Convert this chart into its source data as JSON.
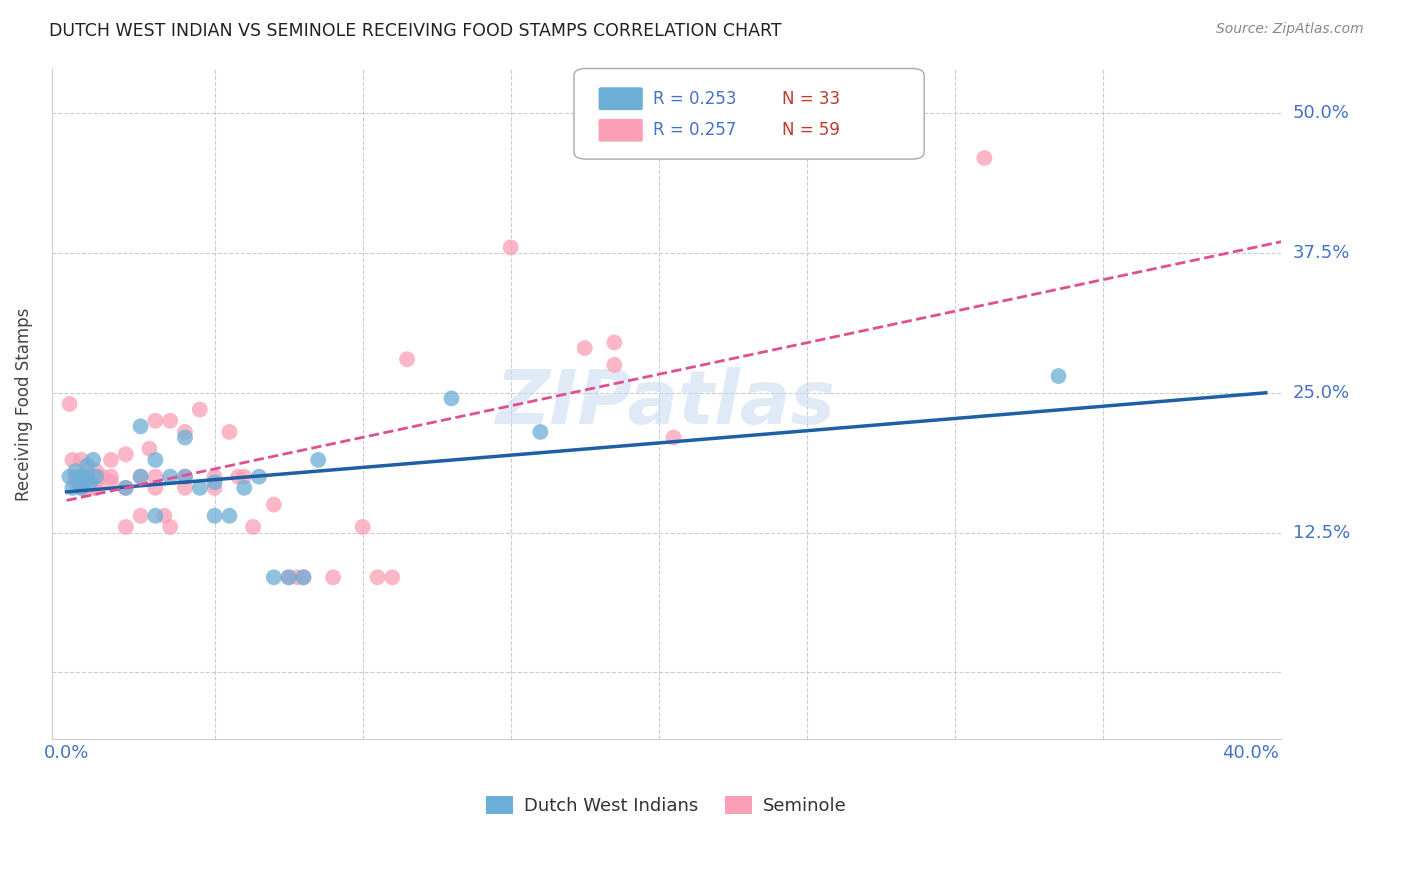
{
  "title": "DUTCH WEST INDIAN VS SEMINOLE RECEIVING FOOD STAMPS CORRELATION CHART",
  "source": "Source: ZipAtlas.com",
  "ylabel_label": "Receiving Food Stamps",
  "xlim": [
    -0.005,
    0.41
  ],
  "ylim": [
    -0.06,
    0.54
  ],
  "legend_r1": "R = 0.253",
  "legend_n1": "N = 33",
  "legend_r2": "R = 0.257",
  "legend_n2": "N = 59",
  "blue_color": "#6baed6",
  "pink_color": "#fa9fb5",
  "line_blue": "#1f5fa6",
  "line_pink": "#e05090",
  "blue_scatter": [
    [
      0.001,
      0.175
    ],
    [
      0.002,
      0.165
    ],
    [
      0.003,
      0.18
    ],
    [
      0.004,
      0.17
    ],
    [
      0.005,
      0.175
    ],
    [
      0.005,
      0.165
    ],
    [
      0.006,
      0.17
    ],
    [
      0.007,
      0.185
    ],
    [
      0.007,
      0.175
    ],
    [
      0.008,
      0.17
    ],
    [
      0.009,
      0.19
    ],
    [
      0.01,
      0.175
    ],
    [
      0.02,
      0.165
    ],
    [
      0.025,
      0.22
    ],
    [
      0.025,
      0.175
    ],
    [
      0.03,
      0.19
    ],
    [
      0.03,
      0.14
    ],
    [
      0.035,
      0.175
    ],
    [
      0.04,
      0.21
    ],
    [
      0.04,
      0.175
    ],
    [
      0.045,
      0.165
    ],
    [
      0.05,
      0.17
    ],
    [
      0.05,
      0.14
    ],
    [
      0.055,
      0.14
    ],
    [
      0.06,
      0.165
    ],
    [
      0.065,
      0.175
    ],
    [
      0.07,
      0.085
    ],
    [
      0.075,
      0.085
    ],
    [
      0.08,
      0.085
    ],
    [
      0.085,
      0.19
    ],
    [
      0.13,
      0.245
    ],
    [
      0.16,
      0.215
    ],
    [
      0.335,
      0.265
    ]
  ],
  "pink_scatter": [
    [
      0.001,
      0.24
    ],
    [
      0.002,
      0.19
    ],
    [
      0.003,
      0.175
    ],
    [
      0.003,
      0.17
    ],
    [
      0.004,
      0.175
    ],
    [
      0.004,
      0.175
    ],
    [
      0.005,
      0.165
    ],
    [
      0.005,
      0.19
    ],
    [
      0.005,
      0.17
    ],
    [
      0.006,
      0.165
    ],
    [
      0.007,
      0.175
    ],
    [
      0.007,
      0.18
    ],
    [
      0.008,
      0.175
    ],
    [
      0.008,
      0.17
    ],
    [
      0.009,
      0.175
    ],
    [
      0.009,
      0.165
    ],
    [
      0.01,
      0.18
    ],
    [
      0.01,
      0.165
    ],
    [
      0.012,
      0.175
    ],
    [
      0.015,
      0.19
    ],
    [
      0.015,
      0.17
    ],
    [
      0.015,
      0.175
    ],
    [
      0.02,
      0.195
    ],
    [
      0.02,
      0.165
    ],
    [
      0.02,
      0.13
    ],
    [
      0.025,
      0.175
    ],
    [
      0.025,
      0.14
    ],
    [
      0.028,
      0.2
    ],
    [
      0.03,
      0.225
    ],
    [
      0.03,
      0.175
    ],
    [
      0.03,
      0.165
    ],
    [
      0.033,
      0.14
    ],
    [
      0.035,
      0.13
    ],
    [
      0.035,
      0.225
    ],
    [
      0.04,
      0.175
    ],
    [
      0.04,
      0.165
    ],
    [
      0.04,
      0.215
    ],
    [
      0.045,
      0.235
    ],
    [
      0.05,
      0.175
    ],
    [
      0.05,
      0.165
    ],
    [
      0.055,
      0.215
    ],
    [
      0.058,
      0.175
    ],
    [
      0.06,
      0.175
    ],
    [
      0.063,
      0.13
    ],
    [
      0.07,
      0.15
    ],
    [
      0.075,
      0.085
    ],
    [
      0.078,
      0.085
    ],
    [
      0.08,
      0.085
    ],
    [
      0.09,
      0.085
    ],
    [
      0.1,
      0.13
    ],
    [
      0.105,
      0.085
    ],
    [
      0.11,
      0.085
    ],
    [
      0.115,
      0.28
    ],
    [
      0.15,
      0.38
    ],
    [
      0.175,
      0.29
    ],
    [
      0.185,
      0.295
    ],
    [
      0.185,
      0.275
    ],
    [
      0.205,
      0.21
    ],
    [
      0.31,
      0.46
    ]
  ],
  "watermark": "ZIPatlas",
  "background_color": "#ffffff",
  "grid_color": "#cccccc",
  "minor_x_grid": [
    0.05,
    0.1,
    0.15,
    0.2,
    0.25,
    0.3,
    0.35
  ],
  "y_tick_positions": [
    0.0,
    0.125,
    0.25,
    0.375,
    0.5
  ],
  "y_tick_labels": [
    "",
    "12.5%",
    "25.0%",
    "37.5%",
    "50.0%"
  ]
}
